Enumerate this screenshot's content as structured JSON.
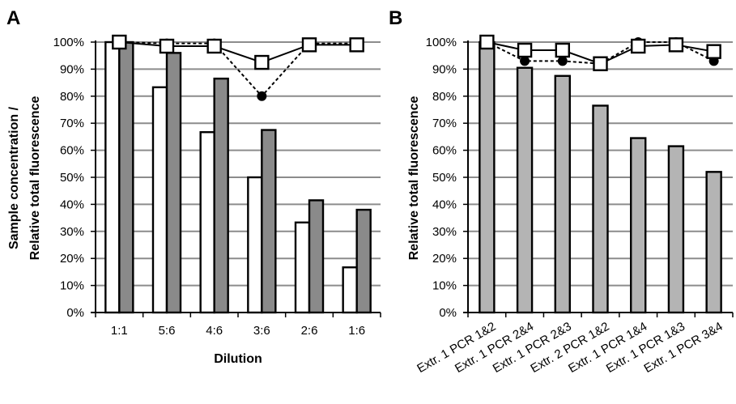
{
  "chart_data": [
    {
      "panel": "A",
      "type": "bar",
      "xlabel": "Dilution",
      "ylabel_lines": [
        "Sample concentration /",
        "Relative total fluorescence"
      ],
      "ylim": [
        0,
        100
      ],
      "ytick_labels": [
        "0%",
        "10%",
        "20%",
        "30%",
        "40%",
        "50%",
        "60%",
        "70%",
        "80%",
        "90%",
        "100%"
      ],
      "grid": true,
      "legend": "none",
      "categories": [
        "1:1",
        "5:6",
        "4:6",
        "3:6",
        "2:6",
        "1:6"
      ],
      "series": [
        {
          "kind": "bar",
          "fill": "#ffffff",
          "values": [
            100,
            83.3,
            66.7,
            50,
            33.3,
            16.7
          ]
        },
        {
          "kind": "bar",
          "fill": "#8a8a8a",
          "values": [
            100,
            96,
            86.5,
            67.5,
            41.5,
            38
          ]
        },
        {
          "kind": "line",
          "marker": "circle",
          "dashed": true,
          "values": [
            100,
            99.5,
            99.5,
            80,
            99.5,
            99.5
          ]
        },
        {
          "kind": "line",
          "marker": "square",
          "dashed": false,
          "values": [
            100,
            98.5,
            98.5,
            92.5,
            99,
            99
          ]
        }
      ]
    },
    {
      "panel": "B",
      "type": "bar",
      "xlabel": "",
      "ylabel_lines": [
        "Relative total fluorescence"
      ],
      "ylim": [
        0,
        100
      ],
      "ytick_labels": [
        "0%",
        "10%",
        "20%",
        "30%",
        "40%",
        "50%",
        "60%",
        "70%",
        "80%",
        "90%",
        "100%"
      ],
      "grid": true,
      "legend": "none",
      "categories": [
        "Extr. 1 PCR 1&2",
        "Extr. 1 PCR 2&4",
        "Extr. 1 PCR 2&3",
        "Extr. 2 PCR 1&2",
        "Extr. 1 PCR 1&4",
        "Extr. 1 PCR 1&3",
        "Extr. 1 PCR 3&4"
      ],
      "series": [
        {
          "kind": "bar",
          "fill": "#b4b4b4",
          "values": [
            100,
            90.5,
            87.5,
            76.5,
            64.5,
            61.5,
            52
          ]
        },
        {
          "kind": "line",
          "marker": "circle",
          "dashed": true,
          "values": [
            100,
            93,
            93,
            92,
            100,
            100,
            93
          ]
        },
        {
          "kind": "line",
          "marker": "square",
          "dashed": false,
          "values": [
            100,
            97,
            97,
            92,
            98.5,
            99,
            96.5
          ]
        }
      ]
    }
  ]
}
